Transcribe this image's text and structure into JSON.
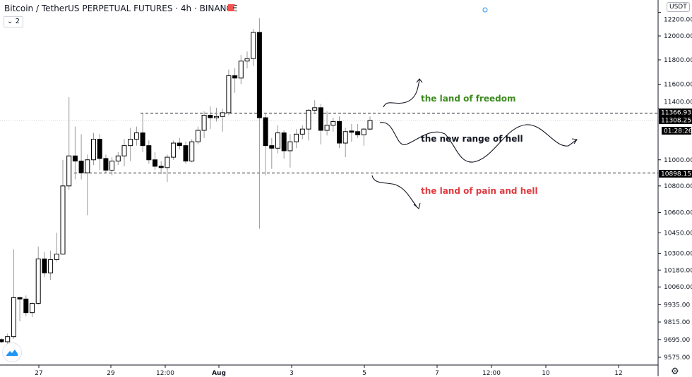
{
  "header": {
    "title": "Bitcoin / TetherUS PERPETUAL FUTURES · 4h · BINANCE",
    "collapse_count": "2",
    "currency": "USDT"
  },
  "colors": {
    "up": "#ffffff",
    "down": "#000000",
    "wick": "#b2b5be",
    "freedom": "#3c8a1e",
    "pain": "#e0393e",
    "flag": "#f05350",
    "alert": "#2196f3"
  },
  "price_axis": {
    "scale": "log",
    "ticks": [
      "12200.00",
      "12000.00",
      "11800.00",
      "11600.00",
      "11400.00",
      "11000.00",
      "10800.00",
      "10600.00",
      "10450.00",
      "10300.00",
      "10180.00",
      "10060.00",
      "9935.00",
      "9815.00",
      "9695.00",
      "9575.00"
    ],
    "labels": {
      "upper_level": "11366.93",
      "last_price": "11308.25",
      "countdown": "01:28:26",
      "lower_level": "10898.15"
    }
  },
  "time_axis": {
    "ticks": [
      "27",
      "29",
      "12:00",
      "Aug",
      "3",
      "5",
      "7",
      "12:00",
      "10",
      "12"
    ]
  },
  "levels": {
    "upper": 11366.93,
    "lower": 10898.15
  },
  "annotations": {
    "freedom": "the land of freedom",
    "range": "the new range of hell",
    "pain": "the land of pain and hell"
  },
  "chart_data": {
    "type": "candlestick",
    "timeframe": "4h",
    "ohlc": [
      [
        9695,
        9705,
        9670,
        9680
      ],
      [
        9680,
        9735,
        9665,
        9715
      ],
      [
        9715,
        10330,
        9700,
        9985
      ],
      [
        9985,
        9990,
        9820,
        9975
      ],
      [
        9975,
        10000,
        9855,
        9880
      ],
      [
        9880,
        9950,
        9850,
        9945
      ],
      [
        9945,
        10350,
        9935,
        10260
      ],
      [
        10260,
        10310,
        10130,
        10160
      ],
      [
        10160,
        10320,
        10110,
        10255
      ],
      [
        10255,
        10450,
        10240,
        10295
      ],
      [
        10295,
        11000,
        10290,
        10800
      ],
      [
        10800,
        11494,
        10770,
        11030
      ],
      [
        11030,
        11260,
        10850,
        10990
      ],
      [
        10990,
        11200,
        10850,
        10900
      ],
      [
        10900,
        11040,
        10580,
        11000
      ],
      [
        11000,
        11210,
        10960,
        11160
      ],
      [
        11160,
        11200,
        10920,
        11010
      ],
      [
        11010,
        11040,
        10900,
        10920
      ],
      [
        10920,
        11020,
        10880,
        10990
      ],
      [
        10990,
        11060,
        10960,
        11030
      ],
      [
        11030,
        11160,
        10950,
        11110
      ],
      [
        11110,
        11250,
        10990,
        11160
      ],
      [
        11160,
        11260,
        11110,
        11210
      ],
      [
        11210,
        11367,
        11060,
        11110
      ],
      [
        11110,
        11150,
        10970,
        11000
      ],
      [
        11000,
        11060,
        10920,
        10950
      ],
      [
        10950,
        10990,
        10890,
        10940
      ],
      [
        10940,
        11040,
        10830,
        11020
      ],
      [
        11020,
        11150,
        11000,
        11130
      ],
      [
        11130,
        11170,
        11080,
        11110
      ],
      [
        11110,
        11140,
        10970,
        10990
      ],
      [
        10990,
        11160,
        10980,
        11140
      ],
      [
        11140,
        11260,
        11120,
        11230
      ],
      [
        11230,
        11380,
        11170,
        11350
      ],
      [
        11350,
        11420,
        11240,
        11330
      ],
      [
        11330,
        11410,
        11300,
        11340
      ],
      [
        11340,
        11400,
        11220,
        11370
      ],
      [
        11370,
        11720,
        11350,
        11670
      ],
      [
        11670,
        11730,
        11530,
        11650
      ],
      [
        11650,
        11840,
        11600,
        11790
      ],
      [
        11790,
        11870,
        11730,
        11810
      ],
      [
        11810,
        12060,
        11750,
        12030
      ],
      [
        12030,
        12150,
        10480,
        11330
      ],
      [
        11330,
        11360,
        10880,
        11110
      ],
      [
        11110,
        11170,
        10930,
        11090
      ],
      [
        11090,
        11270,
        11050,
        11210
      ],
      [
        11210,
        11230,
        11010,
        11070
      ],
      [
        11070,
        11200,
        10940,
        11140
      ],
      [
        11140,
        11240,
        11090,
        11200
      ],
      [
        11200,
        11270,
        11160,
        11240
      ],
      [
        11240,
        11400,
        11150,
        11390
      ],
      [
        11390,
        11470,
        11360,
        11410
      ],
      [
        11410,
        11440,
        11120,
        11230
      ],
      [
        11230,
        11380,
        11190,
        11270
      ],
      [
        11270,
        11330,
        11220,
        11300
      ],
      [
        11300,
        11340,
        11090,
        11130
      ],
      [
        11130,
        11250,
        11020,
        11220
      ],
      [
        11225,
        11280,
        11140,
        11215
      ],
      [
        11220,
        11280,
        11170,
        11195
      ],
      [
        11195,
        11250,
        11110,
        11240
      ],
      [
        11240,
        11340,
        11230,
        11308.25
      ]
    ]
  }
}
